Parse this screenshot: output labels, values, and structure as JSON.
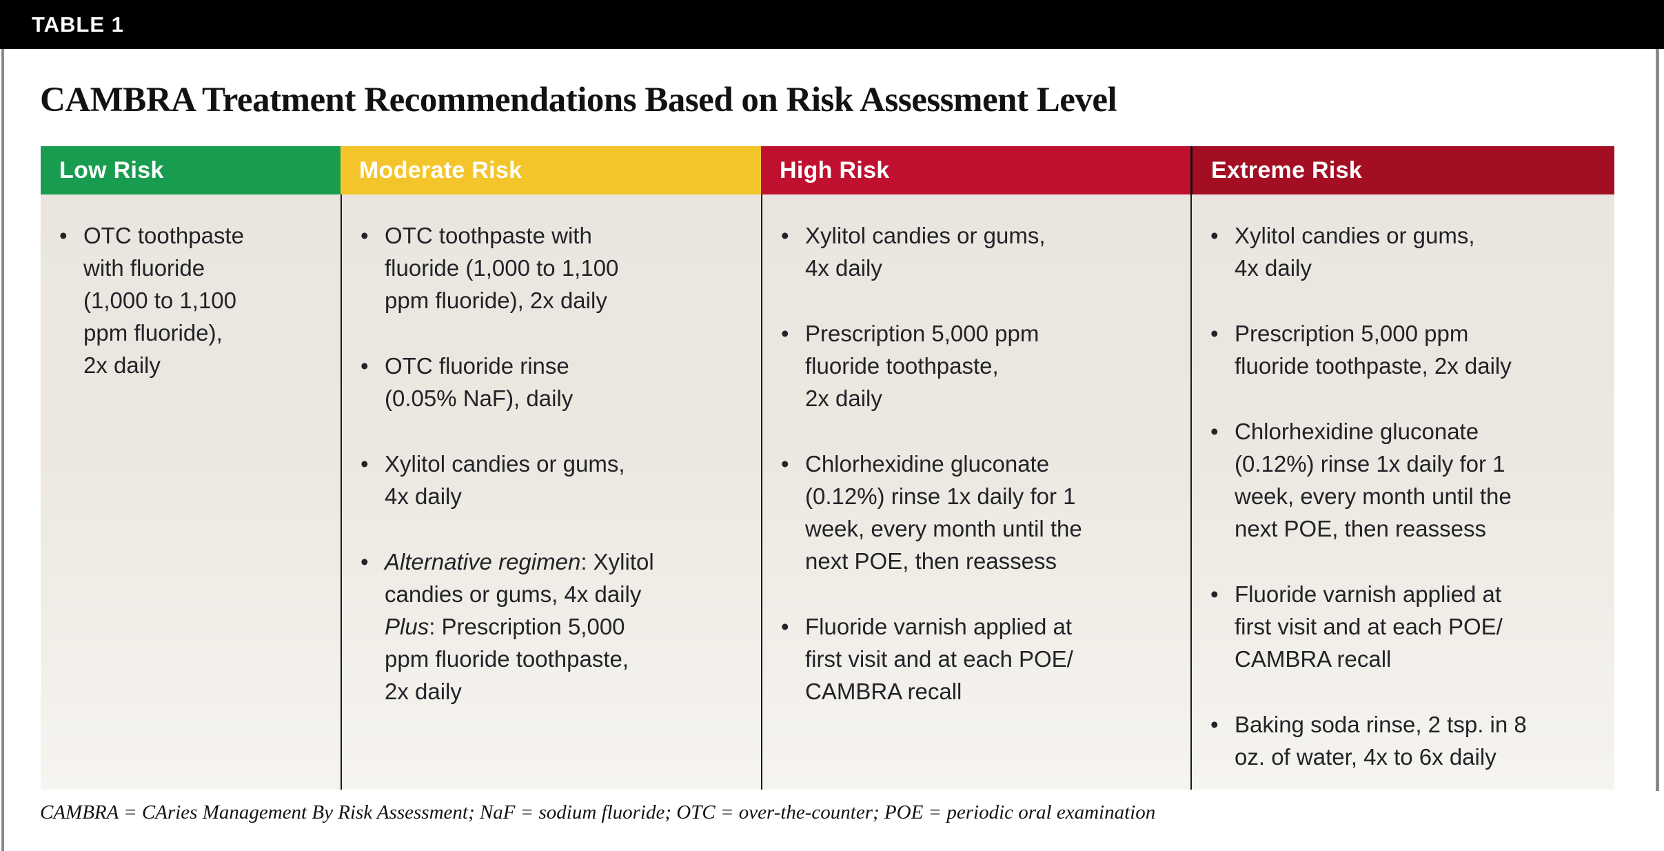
{
  "table_tag": "TABLE 1",
  "title": "CAMBRA Treatment Recommendations Based on Risk Assessment Level",
  "footnote": "CAMBRA = CAries Management By Risk Assessment; NaF = sodium fluoride; OTC = over-the-counter; POE = periodic oral examination",
  "colors": {
    "topbar": "#000000",
    "low_risk": "#189C50",
    "moderate_risk": "#F4C52B",
    "high_risk": "#C0102F",
    "extreme_risk": "#A30E22",
    "body_background": "#ECE8E1",
    "separator": "#1a1a1a"
  },
  "columns": [
    {
      "id": "low-risk",
      "label": "Low Risk",
      "color": "#189C50",
      "items": [
        [
          {
            "t": "OTC toothpaste\nwith fluoride\n(1,000 to 1,100\nppm fluoride),\n2x daily"
          }
        ]
      ]
    },
    {
      "id": "moderate-risk",
      "label": "Moderate Risk",
      "color": "#F4C52B",
      "items": [
        [
          {
            "t": "OTC toothpaste with\nfluoride (1,000 to 1,100\nppm fluoride), 2x daily"
          }
        ],
        [
          {
            "t": "OTC fluoride rinse\n(0.05% NaF), daily"
          }
        ],
        [
          {
            "t": "Xylitol candies or gums,\n4x daily"
          }
        ],
        [
          {
            "t": "Alternative regimen",
            "i": true
          },
          {
            "t": ": Xylitol\ncandies or gums, 4x daily\n"
          },
          {
            "t": "Plus",
            "i": true
          },
          {
            "t": ": Prescription 5,000\nppm fluoride toothpaste,\n2x daily"
          }
        ]
      ]
    },
    {
      "id": "high-risk",
      "label": "High Risk",
      "color": "#C0102F",
      "items": [
        [
          {
            "t": "Xylitol candies or gums,\n4x daily"
          }
        ],
        [
          {
            "t": "Prescription 5,000 ppm\nfluoride toothpaste,\n2x daily"
          }
        ],
        [
          {
            "t": "Chlorhexidine gluconate\n(0.12%) rinse 1x daily for 1\nweek, every month until the\nnext POE, then reassess"
          }
        ],
        [
          {
            "t": "Fluoride varnish applied at\nfirst visit and at each POE/\nCAMBRA recall"
          }
        ]
      ]
    },
    {
      "id": "extreme-risk",
      "label": "Extreme Risk",
      "color": "#A30E22",
      "items": [
        [
          {
            "t": "Xylitol candies or gums,\n4x daily"
          }
        ],
        [
          {
            "t": "Prescription 5,000 ppm\nfluoride toothpaste, 2x daily"
          }
        ],
        [
          {
            "t": "Chlorhexidine gluconate\n(0.12%) rinse 1x daily for 1\nweek, every month until the\nnext POE, then reassess"
          }
        ],
        [
          {
            "t": "Fluoride varnish applied at\nfirst visit and at each POE/\nCAMBRA recall"
          }
        ],
        [
          {
            "t": "Baking soda rinse, 2 tsp. in 8\noz. of water, 4x to 6x daily"
          }
        ]
      ]
    }
  ]
}
